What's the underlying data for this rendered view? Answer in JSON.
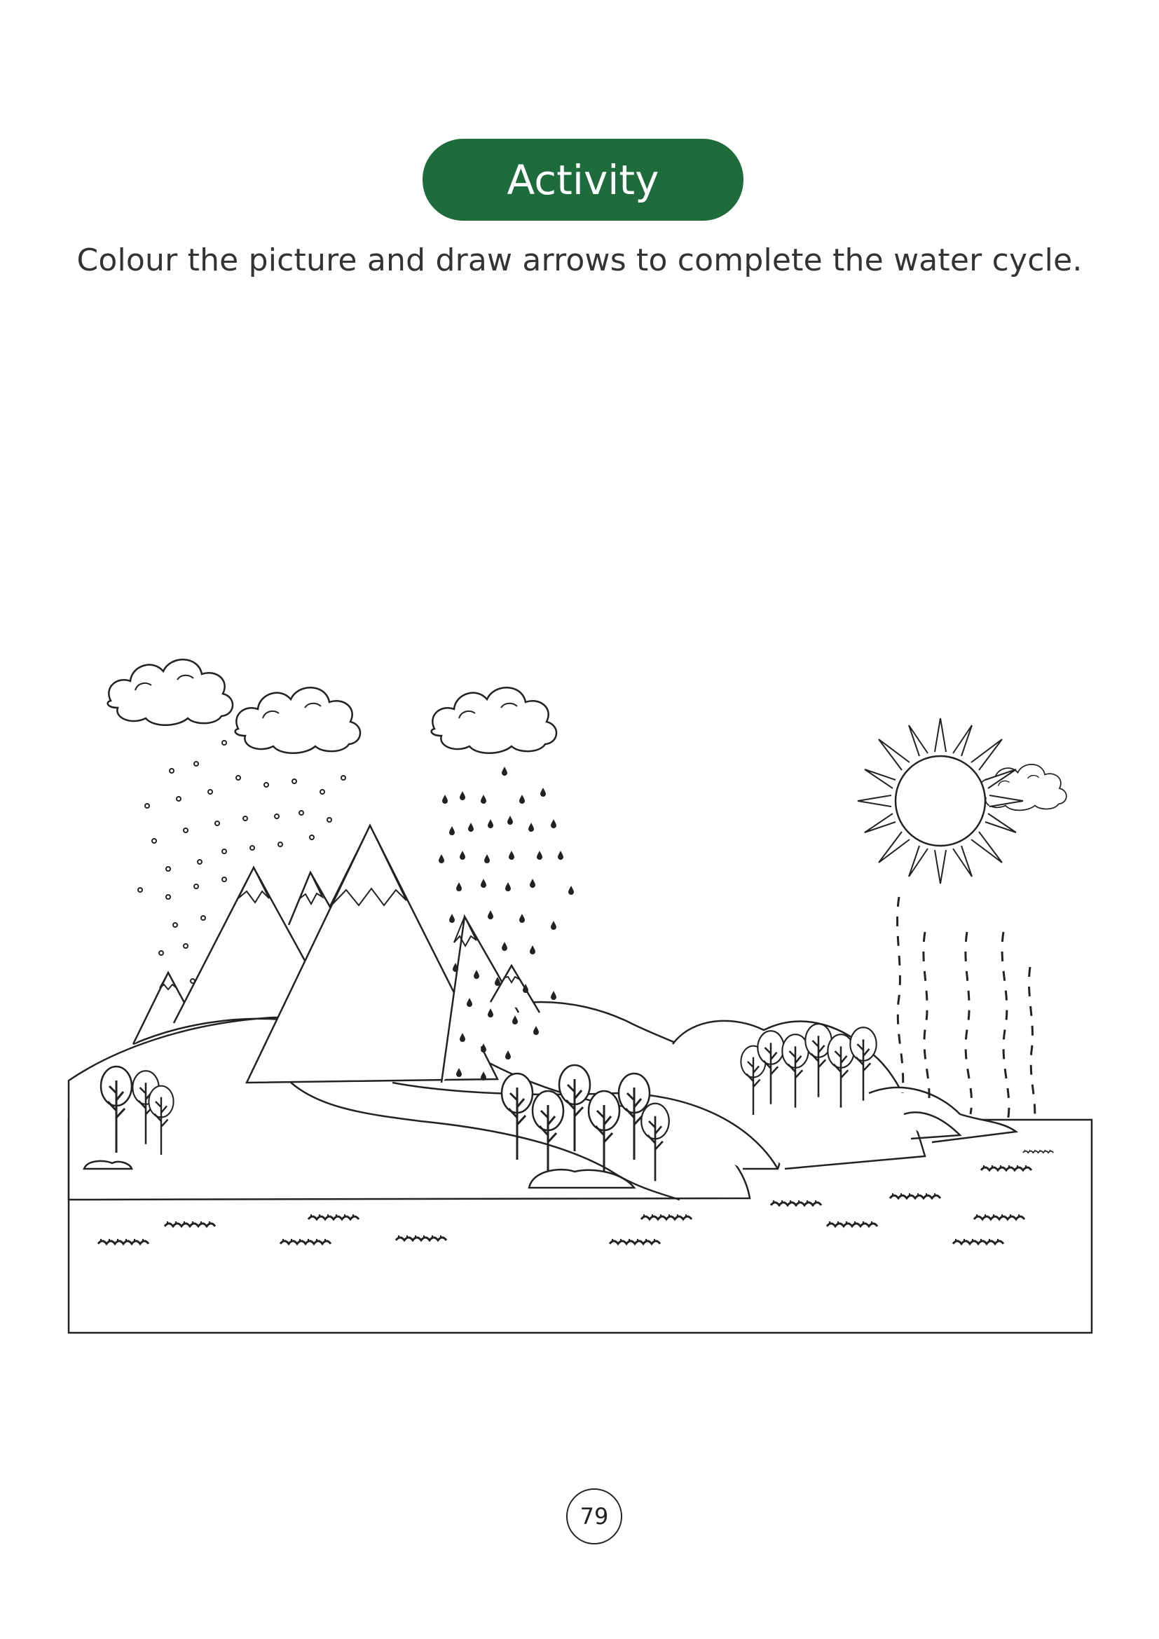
{
  "header": {
    "badge_label": "Activity",
    "badge_color": "#1e6b3c"
  },
  "instruction": "Colour the picture and draw arrows to complete the water cycle.",
  "illustration": {
    "elements": [
      "clouds",
      "snowfall",
      "rain",
      "mountains",
      "hills",
      "trees",
      "sun",
      "evaporation-lines",
      "water-waves"
    ]
  },
  "footer": {
    "page_number": "79"
  }
}
